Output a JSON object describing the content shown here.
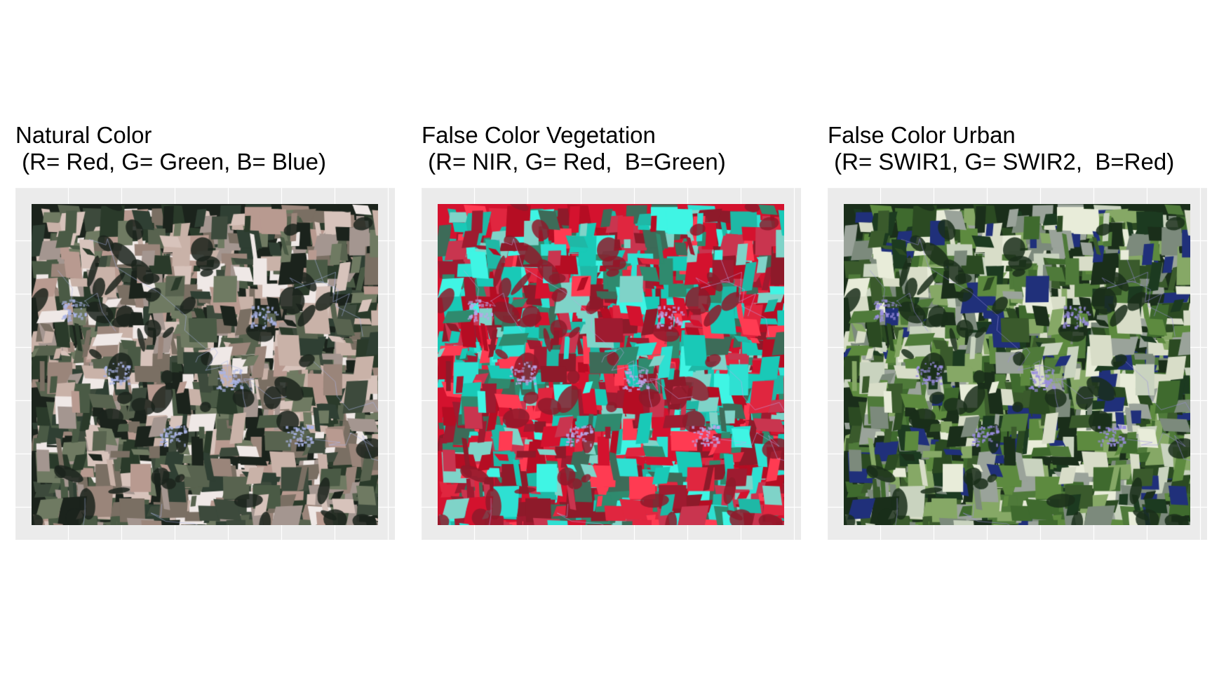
{
  "panels": [
    {
      "title_line1": "Natural Color",
      "title_line2": " (R= Red, G= Green, B= Blue)",
      "palette": [
        "#1b231c",
        "#2a3a2a",
        "#3d4a3c",
        "#58634f",
        "#7a6f63",
        "#9a857a",
        "#b89a90",
        "#d7c3bb",
        "#efe8e6",
        "#2f3f33",
        "#6f7a62",
        "#a49690",
        "#4a5a45",
        "#c9b2a8"
      ],
      "town_color": "#aab4e6",
      "background_color": "#ebebeb"
    },
    {
      "title_line1": "False Color Vegetation",
      "title_line2": " (R= NIR, G= Red,  B=Green)",
      "palette": [
        "#d4122e",
        "#b50d23",
        "#e0263f",
        "#ff3b52",
        "#8e1a2a",
        "#2ee0d2",
        "#3ff5e4",
        "#1fb8a6",
        "#2f8a6e",
        "#3d6b58",
        "#7fd3c8",
        "#c9354f",
        "#9e1b30",
        "#19c9b7"
      ],
      "town_color": "#b9a6e8",
      "background_color": "#ebebeb"
    },
    {
      "title_line1": "False Color Urban",
      "title_line2": " (R= SWIR1, G= SWIR2,  B=Red)",
      "palette": [
        "#1a2e1a",
        "#2b4a22",
        "#3f6a2e",
        "#5d8a3f",
        "#86a866",
        "#c9d3bf",
        "#e8ecd9",
        "#1c3a20",
        "#4f7a3a",
        "#9aa39a",
        "#20307a",
        "#7c8a7c",
        "#3a5a2c",
        "#d8ddc8"
      ],
      "town_color": "#9a8ee0",
      "background_color": "#ebebeb"
    }
  ]
}
